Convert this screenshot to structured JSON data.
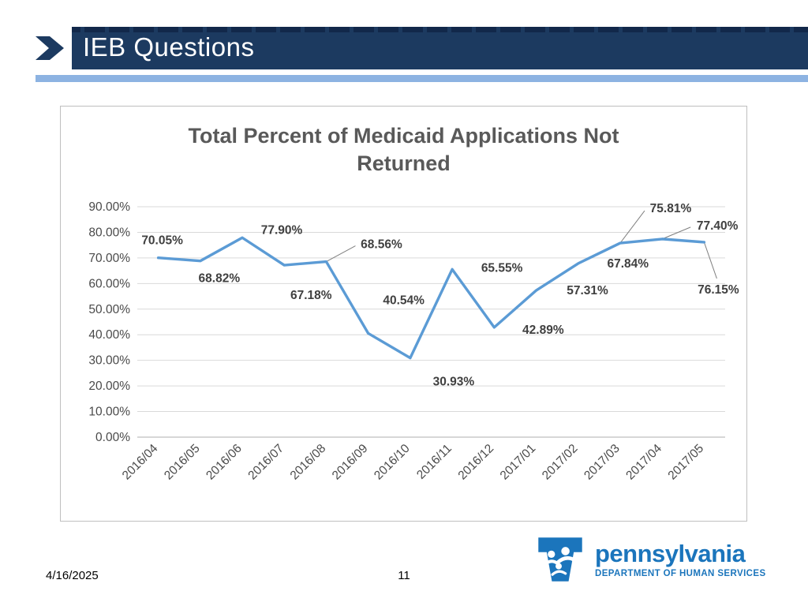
{
  "slide": {
    "title": "IEB Questions",
    "footer": {
      "date": "4/16/2025",
      "page_number": "11"
    },
    "logo": {
      "wordmark": "pennsylvania",
      "subtitle": "DEPARTMENT OF HUMAN SERVICES"
    }
  },
  "colors": {
    "header_bar": "#1C3A60",
    "header_stripe": "#12284A",
    "accent_bar": "#8DB3E2",
    "chart_border": "#BFBFBF",
    "series_line": "#5B9BD5",
    "gridline": "#D9D9D9",
    "axis_line": "#BFBFBF",
    "chart_text": "#595959",
    "tick_text": "#4A4A4A",
    "data_label": "#404040",
    "leader_line": "#7F7F7F",
    "logo_blue": "#1B75BC"
  },
  "chart_data": {
    "type": "line",
    "title": "Total Percent of Medicaid Applications Not Returned",
    "categories": [
      "2016/04",
      "2016/05",
      "2016/06",
      "2016/07",
      "2016/08",
      "2016/09",
      "2016/10",
      "2016/11",
      "2016/12",
      "2017/01",
      "2017/02",
      "2017/03",
      "2017/04",
      "2017/05"
    ],
    "values": [
      70.05,
      68.82,
      77.9,
      67.18,
      68.56,
      40.54,
      30.93,
      65.55,
      42.89,
      57.31,
      67.84,
      75.81,
      77.4,
      76.15
    ],
    "point_labels": [
      "70.05%",
      "68.82%",
      "77.90%",
      "67.18%",
      "68.56%",
      "40.54%",
      "30.93%",
      "65.55%",
      "42.89%",
      "57.31%",
      "67.84%",
      "75.81%",
      "77.40%",
      "76.15%"
    ],
    "xlabel": "",
    "ylabel": "",
    "ylim": [
      0,
      90
    ],
    "ytick_step": 10,
    "ytick_labels": [
      "0.00%",
      "10.00%",
      "20.00%",
      "30.00%",
      "40.00%",
      "50.00%",
      "60.00%",
      "70.00%",
      "80.00%",
      "90.00%"
    ],
    "grid": true,
    "legend": "none"
  }
}
